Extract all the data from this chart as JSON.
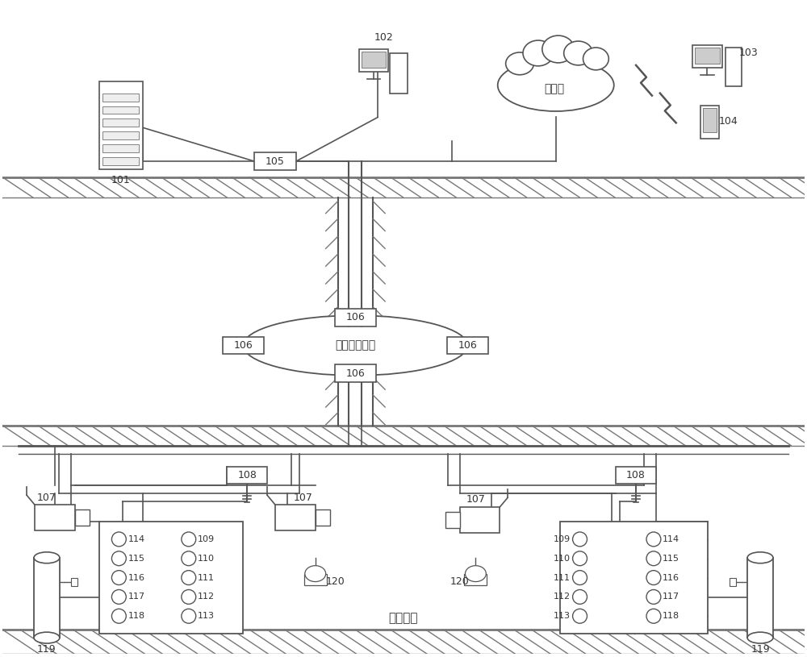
{
  "bg_color": "#ffffff",
  "lc": "#555555",
  "ring_text": "矿用以太环网",
  "internet_text": "互联网",
  "tunnel_text": "井下卷道",
  "fig_w": 10.0,
  "fig_h": 8.15,
  "dpi": 100
}
